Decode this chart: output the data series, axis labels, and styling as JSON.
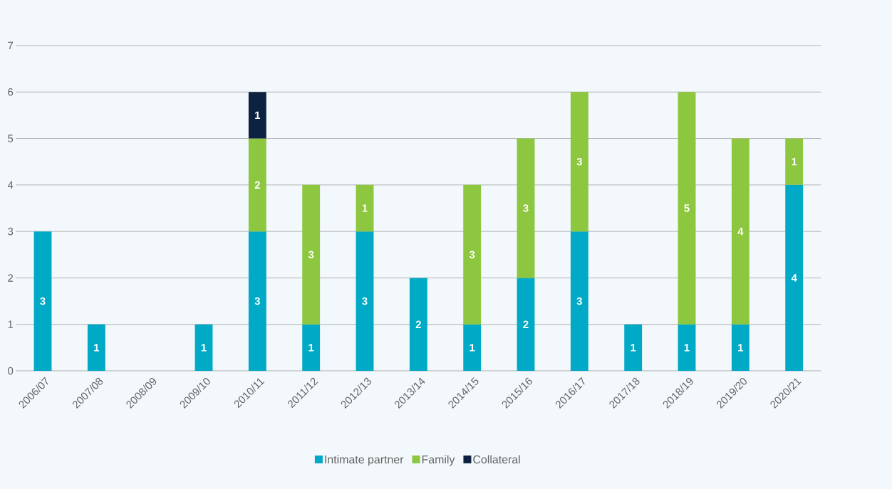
{
  "chart_data": {
    "type": "bar",
    "stacked": true,
    "categories": [
      "2006/07",
      "2007/08",
      "2008/09",
      "2009/10",
      "2010/11",
      "2011/12",
      "2012/13",
      "2013/14",
      "2014/15",
      "2015/16",
      "2016/17",
      "2017/18",
      "2018/19",
      "2019/20",
      "2020/21"
    ],
    "series": [
      {
        "name": "Intimate partner",
        "color": "#00a9c6",
        "values": [
          3,
          1,
          null,
          1,
          3,
          1,
          3,
          2,
          1,
          2,
          3,
          1,
          1,
          1,
          4
        ]
      },
      {
        "name": "Family",
        "color": "#8dc63f",
        "values": [
          null,
          null,
          null,
          null,
          2,
          3,
          1,
          null,
          3,
          3,
          3,
          null,
          5,
          4,
          1
        ]
      },
      {
        "name": "Collateral",
        "color": "#0d2240",
        "values": [
          null,
          null,
          null,
          null,
          1,
          null,
          null,
          null,
          null,
          null,
          null,
          null,
          null,
          null,
          null
        ]
      }
    ],
    "ylim": [
      0,
      7
    ],
    "yticks": [
      0,
      1,
      2,
      3,
      4,
      5,
      6,
      7
    ],
    "grid": "y",
    "legend": "bottom",
    "data_labels": true
  }
}
